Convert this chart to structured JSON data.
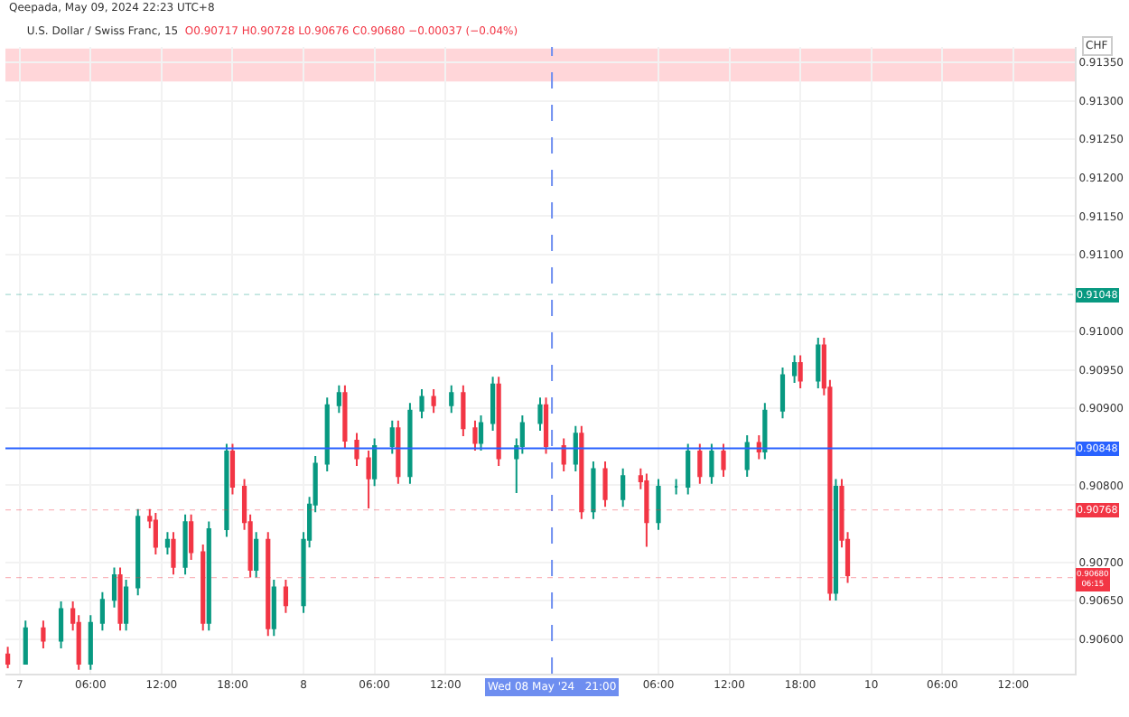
{
  "chart_data": {
    "type": "candlestick",
    "title": "U.S. Dollar / Swiss Franc, 15",
    "subtitle": "O0.90717 H0.90728 L0.90676 C0.90680 −0.00037 (−0.04%)",
    "ylabel": "CHF",
    "annotations": [
      "Qeepada, May 09, 2024 22:23 UTC+8"
    ],
    "x": [
      "2024-05-06T23:00",
      "2024-05-07T00:30",
      "2024-05-07T02:00",
      "2024-05-07T03:30",
      "2024-05-07T04:30",
      "2024-05-07T05:00",
      "2024-05-07T06:00",
      "2024-05-07T07:00",
      "2024-05-07T08:00",
      "2024-05-07T08:30",
      "2024-05-07T09:00",
      "2024-05-07T10:00",
      "2024-05-07T11:00",
      "2024-05-07T11:30",
      "2024-05-07T12:30",
      "2024-05-07T13:00",
      "2024-05-07T14:00",
      "2024-05-07T14:30",
      "2024-05-07T15:30",
      "2024-05-07T16:00",
      "2024-05-07T17:30",
      "2024-05-07T18:00",
      "2024-05-07T19:00",
      "2024-05-07T19:30",
      "2024-05-07T20:00",
      "2024-05-07T21:00",
      "2024-05-07T21:30",
      "2024-05-07T22:30",
      "2024-05-08T00:00",
      "2024-05-08T00:30",
      "2024-05-08T01:00",
      "2024-05-08T02:00",
      "2024-05-08T03:00",
      "2024-05-08T03:30",
      "2024-05-08T04:30",
      "2024-05-08T05:30",
      "2024-05-08T06:00",
      "2024-05-08T07:30",
      "2024-05-08T08:00",
      "2024-05-08T09:00",
      "2024-05-08T10:00",
      "2024-05-08T11:00",
      "2024-05-08T12:30",
      "2024-05-08T13:30",
      "2024-05-08T14:30",
      "2024-05-08T15:00",
      "2024-05-08T16:00",
      "2024-05-08T16:30",
      "2024-05-08T18:00",
      "2024-05-08T18:30",
      "2024-05-08T20:00",
      "2024-05-08T20:30",
      "2024-05-08T22:00",
      "2024-05-08T23:00",
      "2024-05-08T23:30",
      "2024-05-09T00:30",
      "2024-05-09T01:30",
      "2024-05-09T03:00",
      "2024-05-09T04:30",
      "2024-05-09T05:00",
      "2024-05-09T06:00",
      "2024-05-09T07:30",
      "2024-05-09T08:30",
      "2024-05-09T09:30",
      "2024-05-09T10:30",
      "2024-05-09T11:30",
      "2024-05-09T13:30",
      "2024-05-09T14:30",
      "2024-05-09T15:00",
      "2024-05-09T16:30",
      "2024-05-09T17:30",
      "2024-05-09T18:00",
      "2024-05-09T19:30",
      "2024-05-09T20:00",
      "2024-05-09T20:30",
      "2024-05-09T21:00",
      "2024-05-09T21:30",
      "2024-05-09T22:00"
    ],
    "ohlc": [
      [
        0.9058,
        0.9059,
        0.90562,
        0.90568
      ],
      [
        0.90568,
        0.90624,
        0.90568,
        0.90614
      ],
      [
        0.90614,
        0.90624,
        0.90588,
        0.90598
      ],
      [
        0.90598,
        0.90649,
        0.90588,
        0.90639
      ],
      [
        0.90639,
        0.90649,
        0.90611,
        0.90621
      ],
      [
        0.90621,
        0.90631,
        0.9056,
        0.90568
      ],
      [
        0.90568,
        0.90631,
        0.9056,
        0.90621
      ],
      [
        0.90621,
        0.90661,
        0.90611,
        0.90651
      ],
      [
        0.90651,
        0.90693,
        0.90641,
        0.90683
      ],
      [
        0.90683,
        0.90693,
        0.90611,
        0.90621
      ],
      [
        0.90621,
        0.90677,
        0.90611,
        0.90667
      ],
      [
        0.90667,
        0.90769,
        0.90657,
        0.90759
      ],
      [
        0.90759,
        0.90769,
        0.90744,
        0.90754
      ],
      [
        0.90754,
        0.90764,
        0.9071,
        0.9072
      ],
      [
        0.9072,
        0.90739,
        0.9071,
        0.90729
      ],
      [
        0.90729,
        0.90739,
        0.90684,
        0.90694
      ],
      [
        0.90694,
        0.90762,
        0.90684,
        0.90752
      ],
      [
        0.90752,
        0.90762,
        0.90703,
        0.90713
      ],
      [
        0.90713,
        0.90723,
        0.90611,
        0.90621
      ],
      [
        0.90621,
        0.90753,
        0.90611,
        0.90743
      ],
      [
        0.90743,
        0.90854,
        0.90733,
        0.90844
      ],
      [
        0.90844,
        0.90854,
        0.90788,
        0.90798
      ],
      [
        0.90798,
        0.90808,
        0.90742,
        0.90752
      ],
      [
        0.90752,
        0.90762,
        0.9068,
        0.9069
      ],
      [
        0.9069,
        0.90739,
        0.9068,
        0.90729
      ],
      [
        0.90729,
        0.90739,
        0.90604,
        0.90614
      ],
      [
        0.90614,
        0.90677,
        0.90604,
        0.90667
      ],
      [
        0.90667,
        0.90677,
        0.90634,
        0.90644
      ],
      [
        0.90644,
        0.90739,
        0.90634,
        0.90729
      ],
      [
        0.90729,
        0.90785,
        0.90719,
        0.90775
      ],
      [
        0.90775,
        0.90838,
        0.90765,
        0.90828
      ],
      [
        0.90828,
        0.90914,
        0.90818,
        0.90904
      ],
      [
        0.90904,
        0.9093,
        0.90894,
        0.9092
      ],
      [
        0.9092,
        0.9093,
        0.90848,
        0.90858
      ],
      [
        0.90858,
        0.90868,
        0.90825,
        0.90835
      ],
      [
        0.90835,
        0.90845,
        0.9077,
        0.90809
      ],
      [
        0.90809,
        0.90861,
        0.90799,
        0.90851
      ],
      [
        0.90851,
        0.90884,
        0.90841,
        0.90874
      ],
      [
        0.90874,
        0.90884,
        0.90802,
        0.90812
      ],
      [
        0.90812,
        0.90907,
        0.90802,
        0.90897
      ],
      [
        0.90897,
        0.90925,
        0.90887,
        0.90915
      ],
      [
        0.90915,
        0.90925,
        0.90894,
        0.90904
      ],
      [
        0.90904,
        0.9093,
        0.90894,
        0.9092
      ],
      [
        0.9092,
        0.9093,
        0.90864,
        0.90874
      ],
      [
        0.90874,
        0.90884,
        0.90845,
        0.90855
      ],
      [
        0.90855,
        0.90891,
        0.90845,
        0.90881
      ],
      [
        0.90881,
        0.90941,
        0.90871,
        0.90931
      ],
      [
        0.90931,
        0.90941,
        0.90825,
        0.90835
      ],
      [
        0.90835,
        0.90861,
        0.9079,
        0.90851
      ],
      [
        0.90851,
        0.90891,
        0.90841,
        0.90881
      ],
      [
        0.90881,
        0.90914,
        0.90871,
        0.90904
      ],
      [
        0.90904,
        0.90914,
        0.90841,
        0.90851
      ],
      [
        0.90851,
        0.90861,
        0.90818,
        0.90828
      ],
      [
        0.90828,
        0.90877,
        0.90818,
        0.90867
      ],
      [
        0.90867,
        0.90877,
        0.90756,
        0.90766
      ],
      [
        0.90766,
        0.90831,
        0.90756,
        0.90821
      ],
      [
        0.90821,
        0.90831,
        0.90772,
        0.90782
      ],
      [
        0.90782,
        0.90822,
        0.90772,
        0.90812
      ],
      [
        0.90812,
        0.90822,
        0.90795,
        0.90805
      ],
      [
        0.90805,
        0.90815,
        0.9072,
        0.90752
      ],
      [
        0.90752,
        0.90808,
        0.90742,
        0.90798
      ],
      [
        0.90798,
        0.90808,
        0.90788,
        0.90798
      ],
      [
        0.90798,
        0.90854,
        0.90788,
        0.90844
      ],
      [
        0.90844,
        0.90854,
        0.90802,
        0.90812
      ],
      [
        0.90812,
        0.90854,
        0.90802,
        0.90844
      ],
      [
        0.90844,
        0.90854,
        0.90811,
        0.90821
      ],
      [
        0.90821,
        0.90865,
        0.90811,
        0.90855
      ],
      [
        0.90855,
        0.90865,
        0.90834,
        0.90844
      ],
      [
        0.90844,
        0.90907,
        0.90834,
        0.90897
      ],
      [
        0.90897,
        0.90953,
        0.90887,
        0.90943
      ],
      [
        0.90943,
        0.90969,
        0.90933,
        0.90959
      ],
      [
        0.90959,
        0.90969,
        0.90926,
        0.90936
      ],
      [
        0.90936,
        0.90992,
        0.90926,
        0.90982
      ],
      [
        0.90982,
        0.90992,
        0.90917,
        0.90927
      ],
      [
        0.90927,
        0.90937,
        0.9065,
        0.9066
      ],
      [
        0.9066,
        0.90808,
        0.9065,
        0.90798
      ],
      [
        0.90798,
        0.90808,
        0.90719,
        0.90729
      ],
      [
        0.90729,
        0.90739,
        0.90673,
        0.90683
      ]
    ],
    "xlim": [
      "2024-05-06T22:48",
      "2024-05-10T17:12"
    ],
    "xticks": [
      {
        "value": "2024-05-07T00:00",
        "label": "7"
      },
      {
        "value": "2024-05-07T06:00",
        "label": "06:00"
      },
      {
        "value": "2024-05-07T12:00",
        "label": "12:00"
      },
      {
        "value": "2024-05-07T18:00",
        "label": "18:00"
      },
      {
        "value": "2024-05-08T00:00",
        "label": "8"
      },
      {
        "value": "2024-05-08T06:00",
        "label": "06:00"
      },
      {
        "value": "2024-05-08T12:00",
        "label": "12:00"
      },
      {
        "value": "2024-05-09T06:00",
        "label": "06:00"
      },
      {
        "value": "2024-05-09T12:00",
        "label": "12:00"
      },
      {
        "value": "2024-05-09T18:00",
        "label": "18:00"
      },
      {
        "value": "2024-05-10T00:00",
        "label": "10"
      },
      {
        "value": "2024-05-10T06:00",
        "label": "06:00"
      },
      {
        "value": "2024-05-10T12:00",
        "label": "12:00"
      }
    ],
    "ylim": [
      0.90555,
      0.9137
    ],
    "yticks": [
      {
        "value": 0.9135,
        "label": "0.91350"
      },
      {
        "value": 0.913,
        "label": "0.91300"
      },
      {
        "value": 0.9125,
        "label": "0.91250"
      },
      {
        "value": 0.912,
        "label": "0.91200"
      },
      {
        "value": 0.9115,
        "label": "0.91150"
      },
      {
        "value": 0.911,
        "label": "0.91100"
      },
      {
        "value": 0.91,
        "label": "0.91000"
      },
      {
        "value": 0.9095,
        "label": "0.90950"
      },
      {
        "value": 0.909,
        "label": "0.90900"
      },
      {
        "value": 0.908,
        "label": "0.90800"
      },
      {
        "value": 0.907,
        "label": "0.90700"
      },
      {
        "value": 0.9065,
        "label": "0.90650"
      },
      {
        "value": 0.906,
        "label": "0.90600"
      }
    ],
    "grid": true,
    "ref_lines": [
      {
        "axis": "x",
        "value": "2024-05-08T21:00",
        "label": "Wed 08 May '24   21:00",
        "color": "#6e8ef0",
        "line_style": "dashed"
      },
      {
        "axis": "y",
        "value": 0.90848,
        "label": "0.90848",
        "color": "#2962ff",
        "line_style": "solid"
      },
      {
        "axis": "y",
        "value": 0.91048,
        "label": "0.91048",
        "color": "#089981",
        "line_style": "dotted"
      },
      {
        "axis": "y",
        "value": 0.90768,
        "label": "0.90768",
        "color": "#f23645",
        "line_style": "dotted"
      },
      {
        "axis": "y",
        "value": 0.9068,
        "label": "0.90680 06:15",
        "color": "#f23645",
        "line_style": "dotted"
      }
    ],
    "bands": [
      {
        "axis": "y",
        "from": 0.91325,
        "to": 0.91368,
        "color": "#ffd6d9"
      }
    ]
  }
}
